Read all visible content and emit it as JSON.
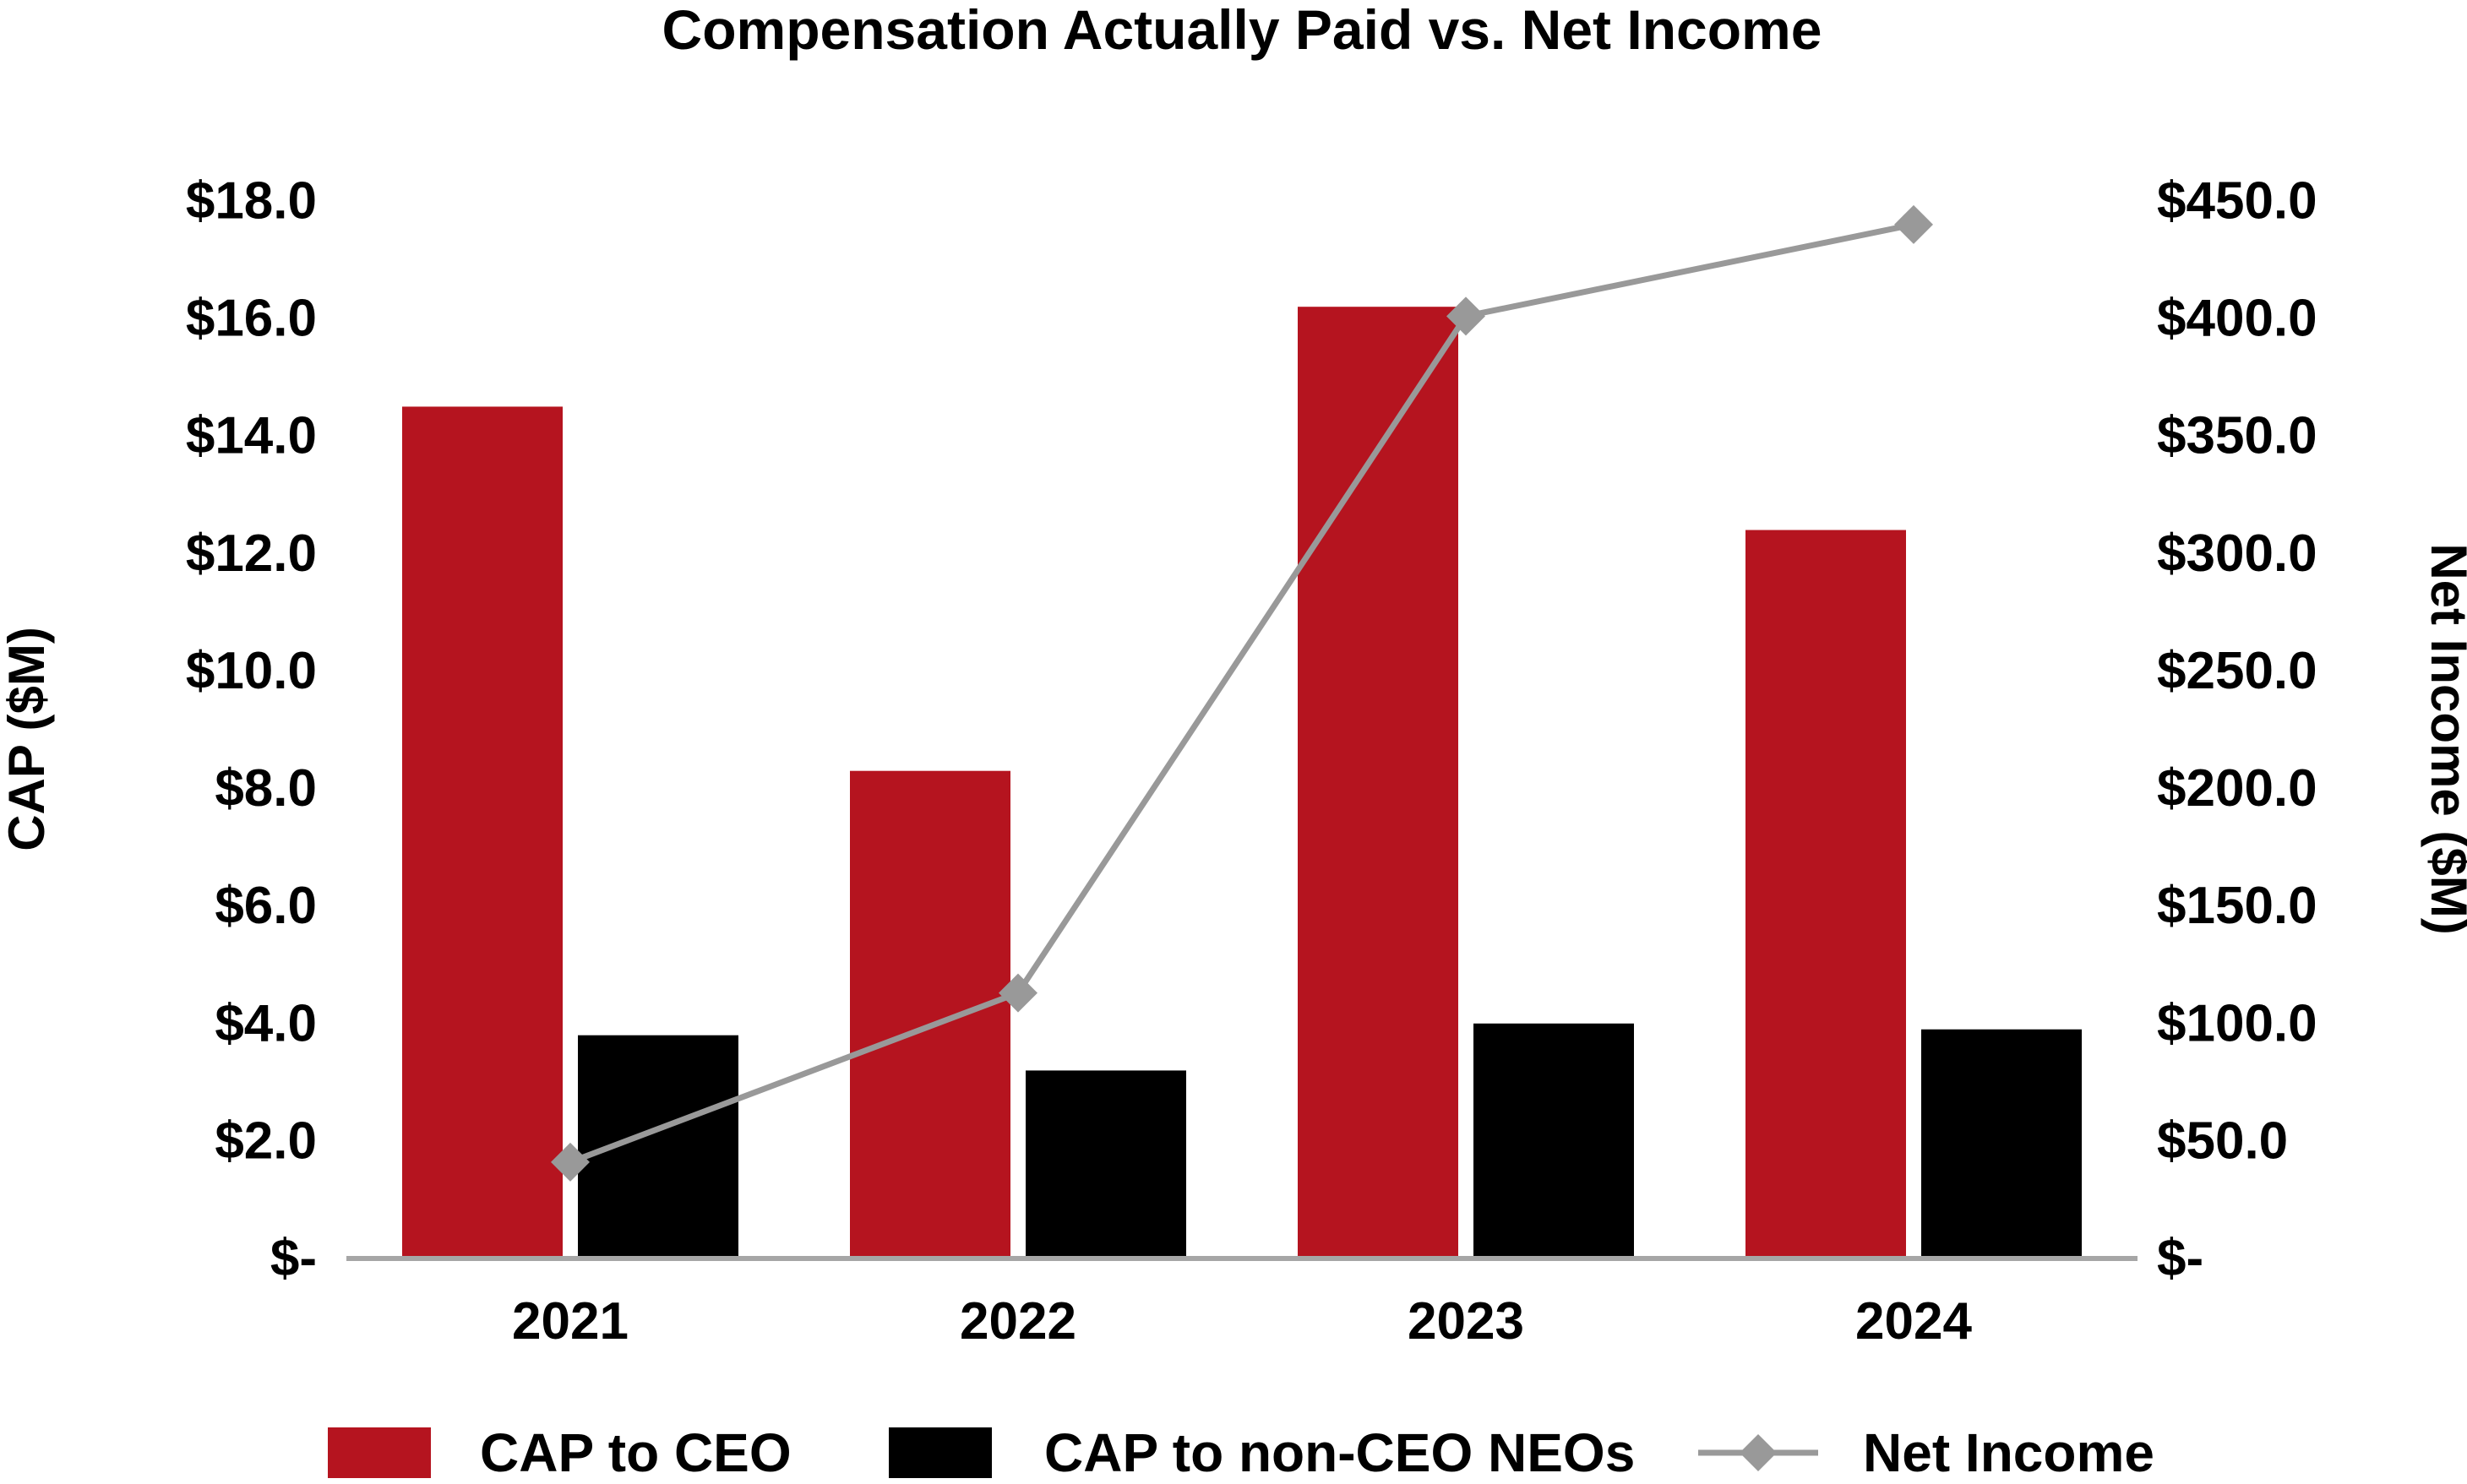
{
  "chart_data": {
    "type": "bar",
    "title": "Compensation Actually Paid vs. Net Income",
    "categories": [
      "2021",
      "2022",
      "2023",
      "2024"
    ],
    "series": [
      {
        "name": "CAP to CEO",
        "type": "bar",
        "axis": "left",
        "color": "#b5141f",
        "values": [
          14.5,
          8.3,
          16.2,
          12.4
        ]
      },
      {
        "name": "CAP to non-CEO NEOs",
        "type": "bar",
        "axis": "left",
        "color": "#000000",
        "values": [
          3.8,
          3.2,
          4.0,
          3.9
        ]
      },
      {
        "name": "Net Income",
        "type": "line",
        "axis": "right",
        "marker": "diamond",
        "color": "#999999",
        "values": [
          41,
          113,
          401,
          440
        ]
      }
    ],
    "ylabel": "CAP ($M)",
    "y2label": "Net Income ($M)",
    "ylim": [
      0,
      18
    ],
    "y2lim": [
      0,
      450
    ],
    "yticks": [
      0,
      2,
      4,
      6,
      8,
      10,
      12,
      14,
      16,
      18
    ],
    "yticklabels": [
      "$-",
      "$2.0",
      "$4.0",
      "$6.0",
      "$8.0",
      "$10.0",
      "$12.0",
      "$14.0",
      "$16.0",
      "$18.0"
    ],
    "y2ticks": [
      0,
      50,
      100,
      150,
      200,
      250,
      300,
      350,
      400,
      450
    ],
    "y2ticklabels": [
      "$-",
      "$50.0",
      "$100.0",
      "$150.0",
      "$200.0",
      "$250.0",
      "$300.0",
      "$350.0",
      "$400.0",
      "$450.0"
    ],
    "grid": false,
    "legend": "bottom",
    "axis_color": "#a6a6a6"
  }
}
